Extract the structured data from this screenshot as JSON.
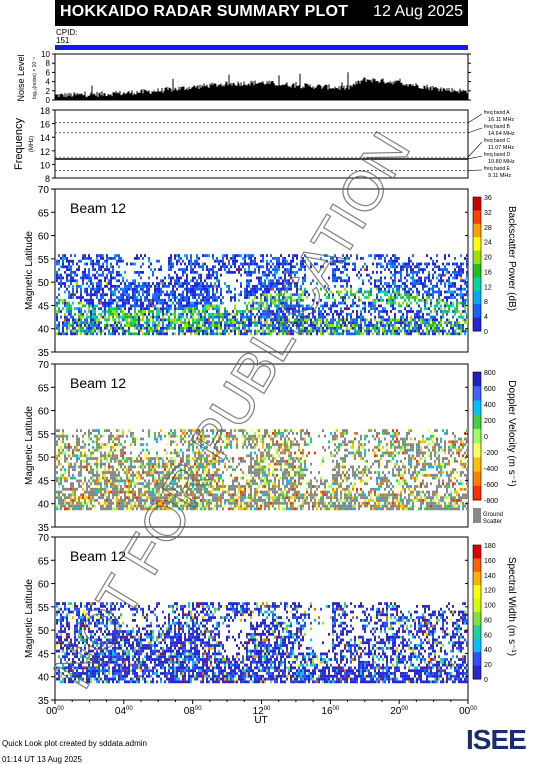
{
  "header": {
    "title": "HOKKAIDO RADAR SUMMARY PLOT",
    "date": "12 Aug 2025",
    "cpid_label": "CPID:",
    "cpid_value": "151"
  },
  "noise_panel": {
    "ylabel": "Noise Level",
    "ylabel_sub": "log₁₀(noise) × 10⁻⁴",
    "yticks": [
      "10",
      "8",
      "6",
      "4",
      "2",
      "0"
    ]
  },
  "freq_panel": {
    "ylabel": "Frequency",
    "ylabel_unit": "(MHz)",
    "yticks": [
      "18",
      "16",
      "14",
      "12",
      "10",
      "8"
    ],
    "bands": [
      {
        "name": "freq band A",
        "value": "16.11 MHz",
        "mhz": 16.11
      },
      {
        "name": "freq band B",
        "value": "14.64 MHz",
        "mhz": 14.64
      },
      {
        "name": "freq band C",
        "value": "11.07 MHz",
        "mhz": 11.07
      },
      {
        "name": "freq band D",
        "value": "10.80 MHz",
        "mhz": 10.8
      },
      {
        "name": "freq band E",
        "value": "9.11 MHz",
        "mhz": 9.11
      }
    ]
  },
  "panels": [
    {
      "beam": "Beam 12",
      "ylabel": "Magnetic Latitude",
      "cbar_label": "Backscatter Power (dB)",
      "cbar_ticks": [
        "36",
        "32",
        "28",
        "24",
        "20",
        "16",
        "12",
        "8",
        "4",
        "0"
      ]
    },
    {
      "beam": "Beam 12",
      "ylabel": "Magnetic Latitude",
      "cbar_label": "Doppler Velocity (m s⁻¹)",
      "cbar_ticks": [
        "800",
        "600",
        "400",
        "200",
        "0",
        "-200",
        "-400",
        "-600",
        "-800"
      ],
      "ground_label_1": "Ground",
      "ground_label_2": "Scatter"
    },
    {
      "beam": "Beam 12",
      "ylabel": "Magnetic Latitude",
      "cbar_label": "Spectral Width (m s⁻¹)",
      "cbar_ticks": [
        "180",
        "160",
        "140",
        "120",
        "100",
        "80",
        "60",
        "40",
        "20",
        "0"
      ]
    }
  ],
  "lat_ticks": [
    "70",
    "65",
    "60",
    "55",
    "50",
    "45",
    "40",
    "35"
  ],
  "x_axis": {
    "label": "UT",
    "ticks": [
      "00",
      "04",
      "08",
      "12",
      "16",
      "20",
      "00"
    ],
    "tick_sup": "00"
  },
  "footer": {
    "credit": "Quick Look plot created by sddata.admin",
    "time": "01:14 UT 13 Aug 2025"
  },
  "logo": {
    "text": "ISEE"
  },
  "watermark": {
    "text": "NOT FOR PUBLICATION"
  },
  "colors": {
    "background": "#ffffff",
    "cpid_bar": "#1818f0",
    "ground_scatter": "#888888",
    "logo": "#1a2e6e"
  },
  "chart_data": [
    {
      "type": "line",
      "title": "Noise Level",
      "x_units": "UT hours",
      "xlim": [
        0,
        24
      ],
      "ylim": [
        0,
        10
      ],
      "series": [
        {
          "values_x": [
            0,
            2,
            4,
            6,
            8,
            10,
            12,
            14,
            16,
            17,
            18,
            20,
            22,
            24
          ],
          "values_y": [
            1.0,
            1.2,
            1.5,
            2.0,
            2.8,
            3.5,
            3.8,
            3.2,
            2.8,
            2.6,
            4.5,
            3.8,
            2.6,
            1.8
          ]
        }
      ]
    },
    {
      "type": "line",
      "title": "Frequency",
      "ylim": [
        8,
        18
      ],
      "series": [
        {
          "values_x": [
            0,
            24
          ],
          "values_y": [
            10.8,
            10.8
          ]
        }
      ]
    },
    {
      "type": "heatmap",
      "title": "Backscatter Power (dB)",
      "xlim": [
        0,
        24
      ],
      "ylim": [
        35,
        70
      ],
      "zlim": [
        0,
        36
      ],
      "scatter_lat_range": [
        38,
        56
      ]
    },
    {
      "type": "heatmap",
      "title": "Doppler Velocity (m s⁻¹)",
      "xlim": [
        0,
        24
      ],
      "ylim": [
        35,
        70
      ],
      "zlim": [
        -800,
        800
      ],
      "scatter_lat_range": [
        38,
        56
      ]
    },
    {
      "type": "heatmap",
      "title": "Spectral Width (m s⁻¹)",
      "xlim": [
        0,
        24
      ],
      "ylim": [
        35,
        70
      ],
      "zlim": [
        0,
        180
      ],
      "scatter_lat_range": [
        38,
        56
      ]
    }
  ]
}
